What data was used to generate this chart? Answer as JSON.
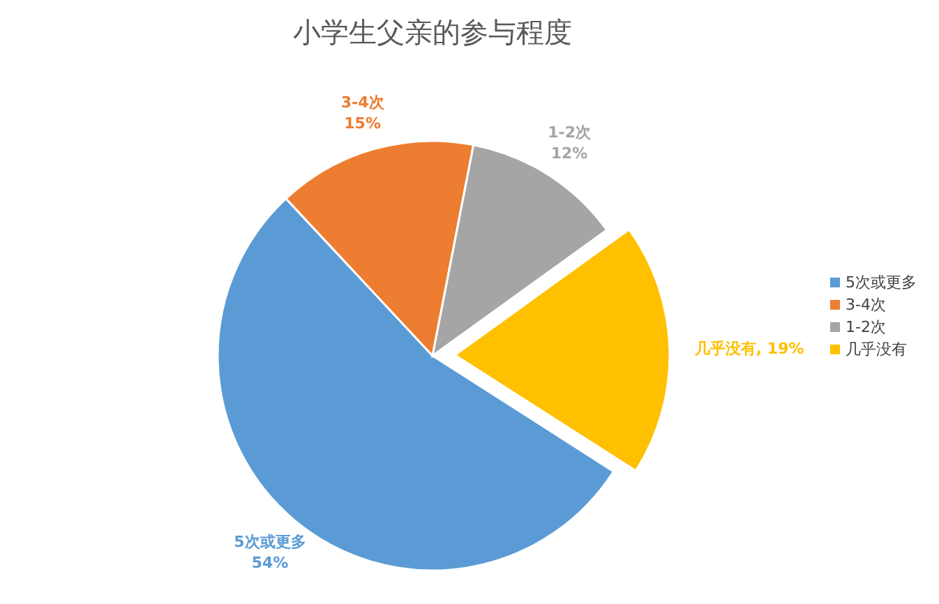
{
  "chart_data": {
    "type": "pie",
    "title": "小学生父亲的参与程度",
    "categories": [
      "5次或更多",
      "3-4次",
      "1-2次",
      "几乎没有"
    ],
    "values": [
      54,
      15,
      12,
      19
    ],
    "colors": [
      "#5b9bd5",
      "#ed7d31",
      "#a5a5a5",
      "#ffc000"
    ],
    "value_labels": [
      "54%",
      "15%",
      "12%",
      "几乎没有, 19%"
    ],
    "legend": "right"
  }
}
